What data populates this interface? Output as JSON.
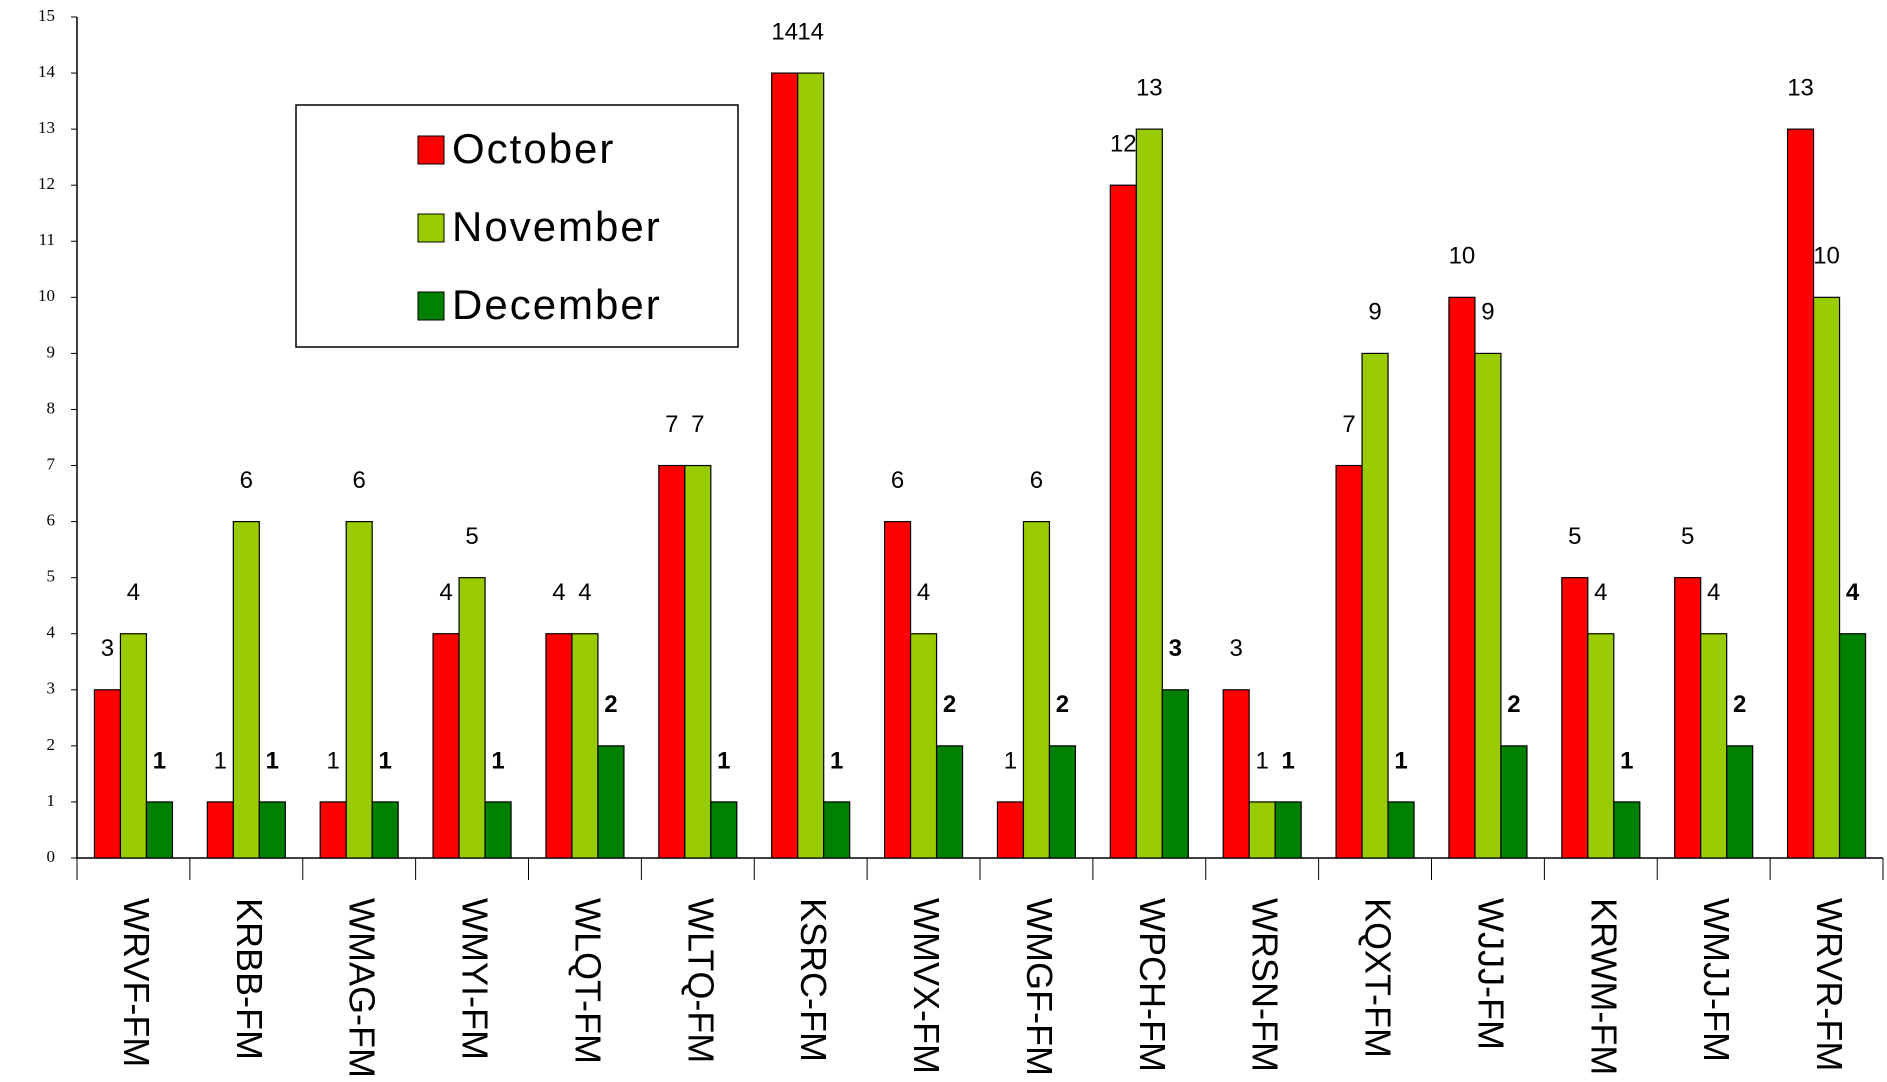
{
  "chart_data": {
    "type": "bar",
    "categories": [
      "WRVF-FM",
      "KRBB-FM",
      "WMAG-FM",
      "WMYI-FM",
      "WLQT-FM",
      "WLTQ-FM",
      "KSRC-FM",
      "WMVX-FM",
      "WMGF-FM",
      "WPCH-FM",
      "WRSN-FM",
      "KQXT-FM",
      "WJJJ-FM",
      "KRWM-FM",
      "WMJJ-FM",
      "WRVR-FM"
    ],
    "series": [
      {
        "name": "October",
        "color": "#ff0000",
        "values": [
          3,
          1,
          1,
          4,
          4,
          7,
          14,
          6,
          1,
          12,
          3,
          7,
          10,
          5,
          5,
          13
        ]
      },
      {
        "name": "November",
        "color": "#99cc00",
        "values": [
          4,
          6,
          6,
          5,
          4,
          7,
          14,
          4,
          6,
          13,
          1,
          9,
          9,
          4,
          4,
          10
        ]
      },
      {
        "name": "December",
        "color": "#008000",
        "values": [
          1,
          1,
          1,
          1,
          2,
          1,
          1,
          2,
          2,
          3,
          1,
          1,
          2,
          1,
          2,
          4
        ]
      }
    ],
    "ylim": [
      0,
      15
    ],
    "yticks": [
      0,
      1,
      2,
      3,
      4,
      5,
      6,
      7,
      8,
      9,
      10,
      11,
      12,
      13,
      14,
      15
    ],
    "grid": false,
    "legend": "upper-left"
  }
}
